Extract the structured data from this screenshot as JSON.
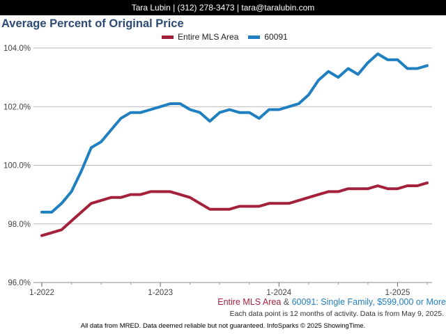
{
  "header": {
    "contact": "Tara Lubin | (312) 278-3473 | tara@taralubin.com"
  },
  "chart_data": {
    "type": "line",
    "title": "Average Percent of Original Price",
    "x": [
      "2022-01",
      "2022-02",
      "2022-03",
      "2022-04",
      "2022-05",
      "2022-06",
      "2022-07",
      "2022-08",
      "2022-09",
      "2022-10",
      "2022-11",
      "2022-12",
      "2023-01",
      "2023-02",
      "2023-03",
      "2023-04",
      "2023-05",
      "2023-06",
      "2023-07",
      "2023-08",
      "2023-09",
      "2023-10",
      "2023-11",
      "2023-12",
      "2024-01",
      "2024-02",
      "2024-03",
      "2024-04",
      "2024-05",
      "2024-06",
      "2024-07",
      "2024-08",
      "2024-09",
      "2024-10",
      "2024-11",
      "2024-12",
      "2025-01",
      "2025-02",
      "2025-03",
      "2025-04"
    ],
    "x_ticks": [
      "1-2022",
      "1-2023",
      "1-2024",
      "1-2025"
    ],
    "y_ticks": [
      "96.0%",
      "98.0%",
      "100.0%",
      "102.0%",
      "104.0%"
    ],
    "ylim": [
      96,
      104.5
    ],
    "grid": true,
    "legend_position": "top",
    "series": [
      {
        "name": "Entire MLS Area",
        "color": "#a3213a",
        "values": [
          97.6,
          97.7,
          97.8,
          98.1,
          98.4,
          98.7,
          98.8,
          98.9,
          98.9,
          99.0,
          99.0,
          99.1,
          99.1,
          99.1,
          99.0,
          98.9,
          98.7,
          98.5,
          98.5,
          98.5,
          98.6,
          98.6,
          98.6,
          98.7,
          98.7,
          98.7,
          98.8,
          98.9,
          99.0,
          99.1,
          99.1,
          99.2,
          99.2,
          99.2,
          99.3,
          99.2,
          99.2,
          99.3,
          99.3,
          99.4
        ]
      },
      {
        "name": "60091",
        "color": "#1f7fc0",
        "values": [
          98.4,
          98.4,
          98.7,
          99.1,
          99.8,
          100.6,
          100.8,
          101.2,
          101.6,
          101.8,
          101.8,
          101.9,
          102.0,
          102.1,
          102.1,
          101.9,
          101.8,
          101.5,
          101.8,
          101.9,
          101.8,
          101.8,
          101.6,
          101.9,
          101.9,
          102.0,
          102.1,
          102.4,
          102.9,
          103.2,
          103.0,
          103.3,
          103.1,
          103.5,
          103.8,
          103.6,
          103.6,
          103.3,
          103.3,
          103.4
        ]
      }
    ]
  },
  "footnote": {
    "series_a": "Entire MLS Area",
    "amp": " & ",
    "series_b": "60091",
    "suffix": ": Single Family, $599,000 or More",
    "activity": "Each data point is 12 months of activity. Data is from May 9, 2025."
  },
  "footer": {
    "disclaimer": "All data from MRED. Data deemed reliable but not guaranteed. InfoSparks © 2025 ShowingTime."
  }
}
